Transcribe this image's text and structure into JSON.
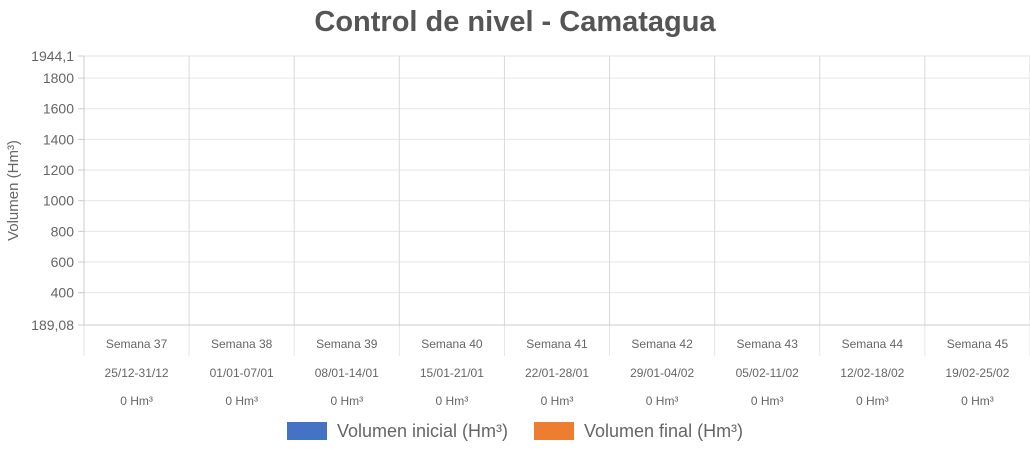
{
  "chart_data": {
    "type": "bar",
    "title": "Control de nivel - Camatagua",
    "ylabel": "Volumen (Hm³)",
    "xlabel": "",
    "ylim": [
      189.08,
      1944.1
    ],
    "y_ticks": [
      "1944,1",
      "1800",
      "1600",
      "1400",
      "1200",
      "1000",
      "800",
      "600",
      "400",
      "189,08"
    ],
    "categories": [
      "Semana 37",
      "Semana 38",
      "Semana 39",
      "Semana 40",
      "Semana 41",
      "Semana 42",
      "Semana 43",
      "Semana 44",
      "Semana 45"
    ],
    "date_ranges": [
      "25/12-31/12",
      "01/01-07/01",
      "08/01-14/01",
      "15/01-21/01",
      "22/01-28/01",
      "29/01-04/02",
      "05/02-11/02",
      "12/02-18/02",
      "19/02-25/02"
    ],
    "value_labels": [
      "0 Hm³",
      "0 Hm³",
      "0 Hm³",
      "0 Hm³",
      "0 Hm³",
      "0 Hm³",
      "0 Hm³",
      "0 Hm³",
      "0 Hm³"
    ],
    "series": [
      {
        "name": "Volumen inicial (Hm³)",
        "color": "#4472c4",
        "values": [
          0,
          0,
          0,
          0,
          0,
          0,
          0,
          0,
          0
        ]
      },
      {
        "name": "Volumen final (Hm³)",
        "color": "#ed7d31",
        "values": [
          0,
          0,
          0,
          0,
          0,
          0,
          0,
          0,
          0
        ]
      }
    ],
    "grid": true,
    "legend_position": "bottom"
  }
}
